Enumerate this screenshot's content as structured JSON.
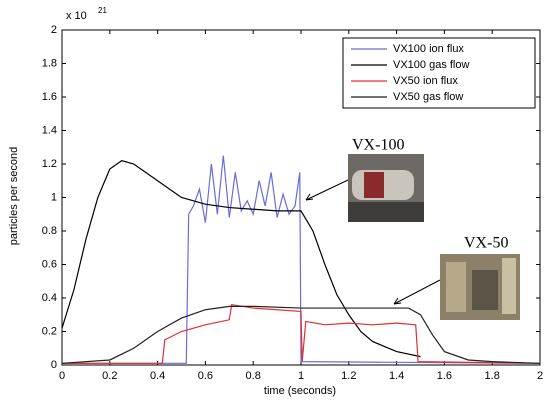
{
  "chart_data": {
    "type": "line",
    "x_label": "time (seconds)",
    "y_label": "particles per second",
    "y_multiplier": {
      "base": "x 10",
      "exponent": "21"
    },
    "xlim": [
      0,
      2
    ],
    "ylim": [
      0,
      2
    ],
    "xticks": [
      0,
      0.2,
      0.4,
      0.6,
      0.8,
      1,
      1.2,
      1.4,
      1.6,
      1.8,
      2
    ],
    "yticks": [
      0,
      0.2,
      0.4,
      0.6,
      0.8,
      1,
      1.2,
      1.4,
      1.6,
      1.8,
      2
    ],
    "grid": false,
    "legend": "upper right",
    "annotations": [
      "VX-100",
      "VX-50"
    ],
    "series": [
      {
        "name": "VX100 ion flux",
        "color": "#6b6be0",
        "x": [
          0,
          0.52,
          0.53,
          0.55,
          0.575,
          0.6,
          0.625,
          0.65,
          0.675,
          0.7,
          0.725,
          0.75,
          0.775,
          0.8,
          0.825,
          0.85,
          0.875,
          0.9,
          0.925,
          0.95,
          0.975,
          0.995,
          1.0,
          2.0
        ],
        "values": [
          0.01,
          0.01,
          0.9,
          0.95,
          1.05,
          0.85,
          1.2,
          0.9,
          1.25,
          0.88,
          1.15,
          0.92,
          0.98,
          0.9,
          1.1,
          0.95,
          1.15,
          0.88,
          1.02,
          0.9,
          0.95,
          1.15,
          0.02,
          0.01
        ]
      },
      {
        "name": "VX100 gas flow",
        "color": "#000000",
        "x": [
          0,
          0.05,
          0.1,
          0.15,
          0.2,
          0.25,
          0.3,
          0.35,
          0.4,
          0.45,
          0.5,
          0.6,
          0.7,
          0.8,
          0.9,
          1.0,
          1.05,
          1.1,
          1.15,
          1.2,
          1.25,
          1.3,
          1.4,
          1.5
        ],
        "values": [
          0.22,
          0.45,
          0.75,
          1.0,
          1.17,
          1.22,
          1.2,
          1.15,
          1.1,
          1.05,
          1.0,
          0.96,
          0.94,
          0.93,
          0.92,
          0.92,
          0.8,
          0.6,
          0.42,
          0.3,
          0.2,
          0.14,
          0.08,
          0.05
        ]
      },
      {
        "name": "VX50 ion flux",
        "color": "#e03030",
        "x": [
          0,
          0.42,
          0.43,
          0.5,
          0.6,
          0.7,
          0.71,
          0.8,
          0.9,
          1.0,
          1.005,
          1.02,
          1.1,
          1.2,
          1.3,
          1.4,
          1.48,
          1.49,
          2.0
        ],
        "values": [
          0.01,
          0.01,
          0.15,
          0.2,
          0.24,
          0.27,
          0.36,
          0.34,
          0.33,
          0.32,
          0.02,
          0.26,
          0.24,
          0.25,
          0.24,
          0.25,
          0.24,
          0.02,
          0.01
        ]
      },
      {
        "name": "VX50 gas flow",
        "color": "#222222",
        "x": [
          0,
          0.2,
          0.3,
          0.4,
          0.5,
          0.6,
          0.7,
          0.8,
          1.0,
          1.2,
          1.45,
          1.5,
          1.55,
          1.6,
          1.7,
          1.8,
          2.0
        ],
        "values": [
          0.01,
          0.03,
          0.1,
          0.2,
          0.28,
          0.33,
          0.35,
          0.35,
          0.34,
          0.34,
          0.34,
          0.3,
          0.18,
          0.08,
          0.03,
          0.02,
          0.01
        ]
      }
    ]
  }
}
